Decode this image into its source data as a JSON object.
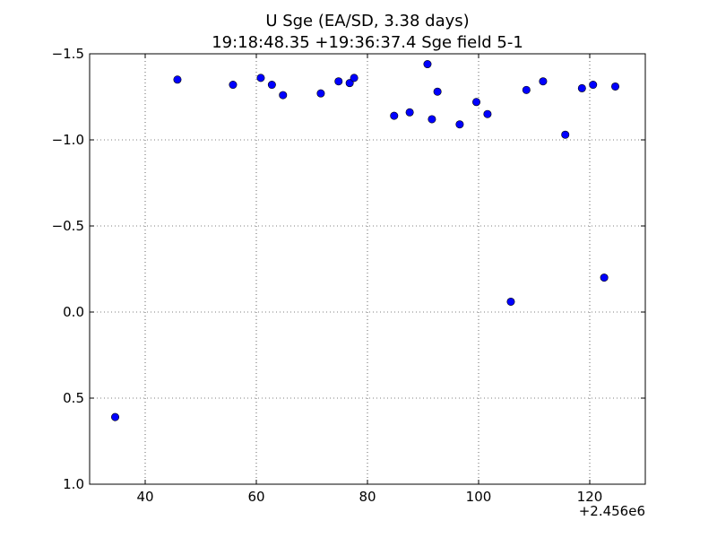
{
  "chart_data": {
    "type": "scatter",
    "title": "U Sge (EA/SD, 3.38 days)",
    "subtitle": "19:18:48.35 +19:36:37.4 Sge field 5-1",
    "x_offset_label": "+2.456e6",
    "xlim": [
      30,
      130
    ],
    "ylim": [
      1.0,
      -1.5
    ],
    "y_inverted": true,
    "grid": true,
    "x_ticks": [
      40,
      60,
      80,
      100,
      120
    ],
    "y_ticks": [
      -1.5,
      -1.0,
      -0.5,
      0.0,
      0.5,
      1.0
    ],
    "x_tick_labels": [
      "40",
      "60",
      "80",
      "100",
      "120"
    ],
    "y_tick_labels": [
      "−1.5",
      "−1.0",
      "−0.5",
      "0.0",
      "0.5",
      "1.0"
    ],
    "marker_color": "#0000ff",
    "points": [
      {
        "x": 34.6,
        "y": 0.61
      },
      {
        "x": 45.8,
        "y": -1.35
      },
      {
        "x": 55.8,
        "y": -1.32
      },
      {
        "x": 60.8,
        "y": -1.36
      },
      {
        "x": 62.8,
        "y": -1.32
      },
      {
        "x": 64.8,
        "y": -1.26
      },
      {
        "x": 71.6,
        "y": -1.27
      },
      {
        "x": 74.8,
        "y": -1.34
      },
      {
        "x": 76.8,
        "y": -1.33
      },
      {
        "x": 77.6,
        "y": -1.36
      },
      {
        "x": 84.8,
        "y": -1.14
      },
      {
        "x": 87.6,
        "y": -1.16
      },
      {
        "x": 90.8,
        "y": -1.44
      },
      {
        "x": 91.6,
        "y": -1.12
      },
      {
        "x": 92.6,
        "y": -1.28
      },
      {
        "x": 96.6,
        "y": -1.09
      },
      {
        "x": 99.6,
        "y": -1.22
      },
      {
        "x": 101.6,
        "y": -1.15
      },
      {
        "x": 105.8,
        "y": -0.06
      },
      {
        "x": 108.6,
        "y": -1.29
      },
      {
        "x": 111.6,
        "y": -1.34
      },
      {
        "x": 115.6,
        "y": -1.03
      },
      {
        "x": 118.6,
        "y": -1.3
      },
      {
        "x": 120.6,
        "y": -1.32
      },
      {
        "x": 122.6,
        "y": -0.2
      },
      {
        "x": 124.6,
        "y": -1.31
      }
    ]
  }
}
